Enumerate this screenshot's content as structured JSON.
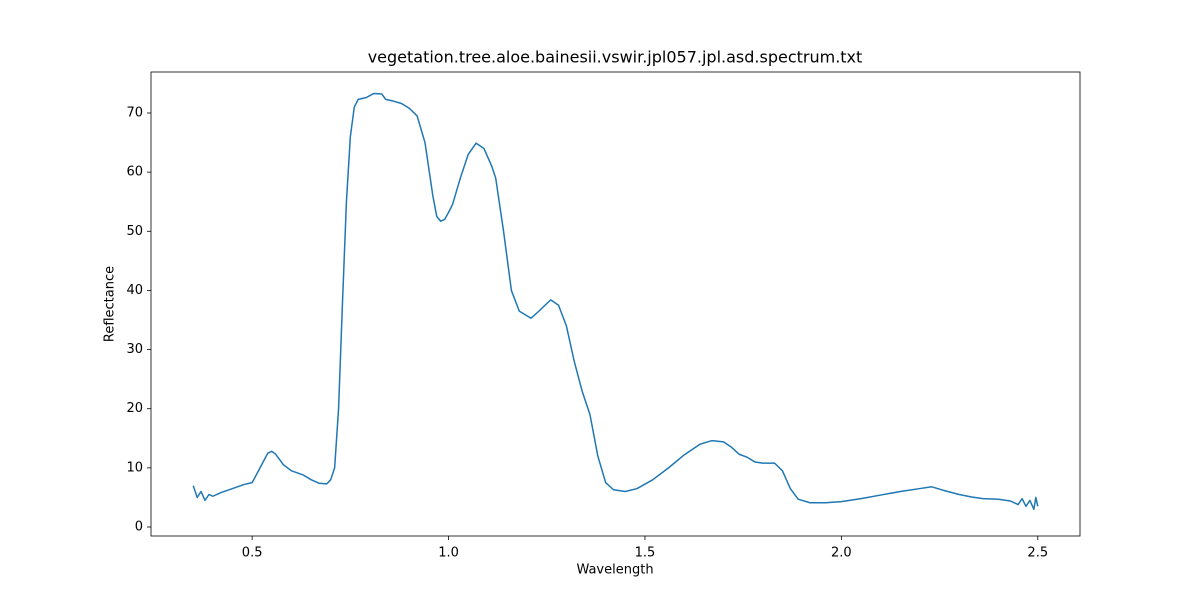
{
  "chart_data": {
    "type": "line",
    "title": "vegetation.tree.aloe.bainesii.vswir.jpl057.jpl.asd.spectrum.txt",
    "x_label": "Wavelength",
    "y_label": "Reflectance",
    "xlim": [
      0.2425,
      2.6075
    ],
    "ylim": [
      -1.52,
      76.93
    ],
    "xticks": [
      0.5,
      {
        "value": 1,
        "label": "1.0"
      },
      1.5,
      {
        "value": 2,
        "label": "2.0"
      },
      2.5
    ],
    "yticks": [
      0,
      10,
      20,
      30,
      40,
      50,
      60,
      70
    ],
    "grid": false,
    "series": [
      {
        "color": "#1f77b4",
        "x": [
          0.35,
          0.36,
          0.37,
          0.38,
          0.39,
          0.4,
          0.42,
          0.45,
          0.48,
          0.5,
          0.52,
          0.54,
          0.55,
          0.56,
          0.58,
          0.6,
          0.63,
          0.65,
          0.67,
          0.69,
          0.7,
          0.71,
          0.72,
          0.73,
          0.74,
          0.75,
          0.76,
          0.77,
          0.79,
          0.81,
          0.83,
          0.84,
          0.86,
          0.88,
          0.9,
          0.92,
          0.94,
          0.96,
          0.97,
          0.98,
          0.99,
          1.0,
          1.01,
          1.03,
          1.05,
          1.07,
          1.09,
          1.11,
          1.12,
          1.14,
          1.16,
          1.18,
          1.21,
          1.23,
          1.26,
          1.28,
          1.3,
          1.32,
          1.34,
          1.36,
          1.38,
          1.4,
          1.42,
          1.45,
          1.48,
          1.52,
          1.56,
          1.6,
          1.64,
          1.67,
          1.7,
          1.72,
          1.74,
          1.76,
          1.78,
          1.8,
          1.83,
          1.85,
          1.87,
          1.89,
          1.92,
          1.96,
          2.0,
          2.05,
          2.1,
          2.15,
          2.2,
          2.23,
          2.26,
          2.3,
          2.33,
          2.36,
          2.4,
          2.43,
          2.45,
          2.46,
          2.47,
          2.48,
          2.49,
          2.495,
          2.5
        ],
        "values": [
          7.0,
          5.0,
          6.0,
          4.5,
          5.5,
          5.2,
          5.8,
          6.5,
          7.2,
          7.5,
          10,
          12.5,
          12.8,
          12.3,
          10.5,
          9.5,
          8.8,
          8.0,
          7.4,
          7.3,
          8.0,
          10,
          20,
          38,
          55,
          66,
          71,
          72.3,
          72.6,
          73.3,
          73.2,
          72.3,
          72.0,
          71.6,
          70.8,
          69.5,
          65,
          56,
          52.5,
          51.7,
          52.0,
          53.2,
          54.5,
          59,
          63,
          64.9,
          64,
          61,
          59,
          50,
          40,
          36.5,
          35.3,
          36.5,
          38.4,
          37.5,
          34,
          28,
          23,
          19,
          12,
          7.5,
          6.3,
          6.0,
          6.5,
          8,
          10,
          12.2,
          14,
          14.6,
          14.4,
          13.5,
          12.3,
          11.8,
          11.0,
          10.8,
          10.8,
          9.5,
          6.5,
          4.7,
          4.1,
          4.1,
          4.3,
          4.8,
          5.4,
          6.0,
          6.5,
          6.8,
          6.2,
          5.5,
          5.1,
          4.8,
          4.7,
          4.4,
          3.8,
          4.8,
          3.5,
          4.5,
          3.0,
          5.0,
          3.5
        ]
      }
    ]
  }
}
